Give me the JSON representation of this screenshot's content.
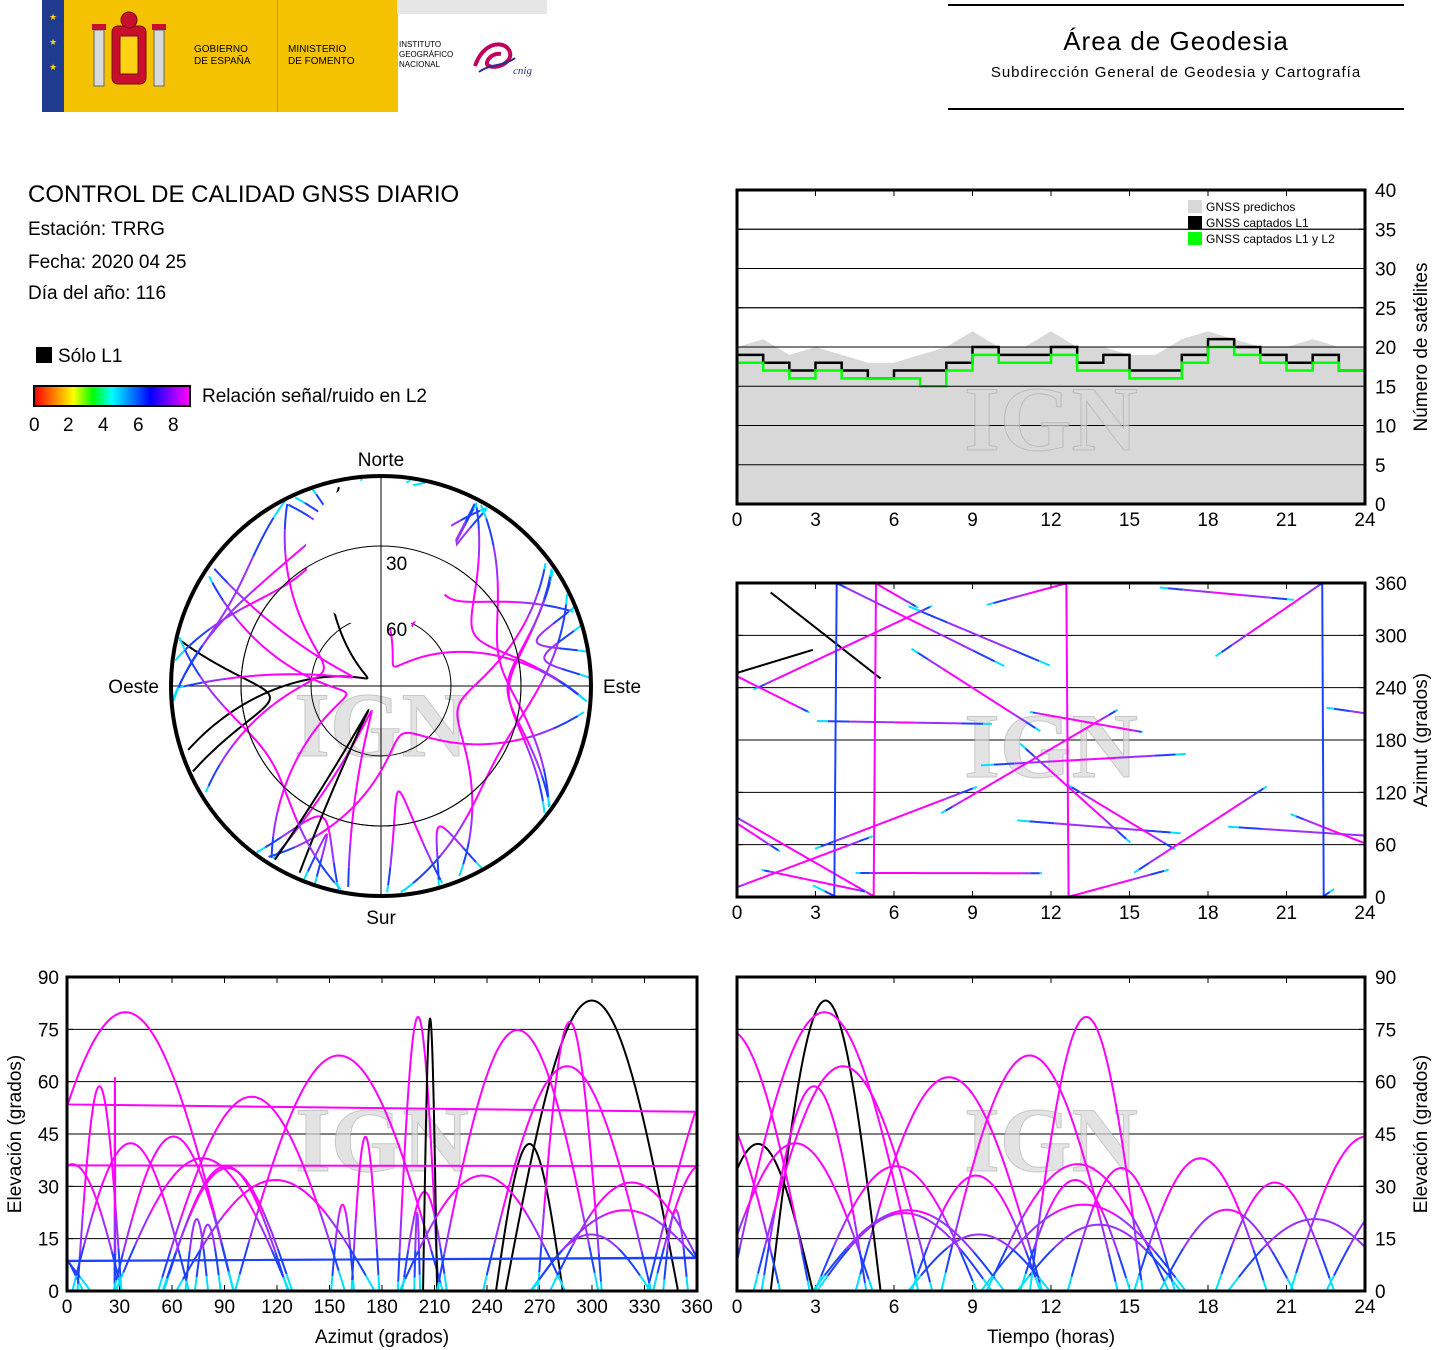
{
  "header": {
    "gov_line1": "GOBIERNO",
    "gov_line2": "DE ESPAÑA",
    "ministry_line1": "MINISTERIO",
    "ministry_line2": "DE FOMENTO",
    "institute_line1": "INSTITUTO",
    "institute_line2": "GEOGRÁFICO",
    "institute_line3": "NACIONAL",
    "cnig": "cnig",
    "area_title": "Área de Geodesia",
    "area_subtitle": "Subdirección General de Geodesia y Cartografía"
  },
  "info": {
    "title": "CONTROL DE CALIDAD GNSS DIARIO",
    "station": "Estación: TRRG",
    "date": "Fecha: 2020 04 25",
    "doy": "Día del año: 116"
  },
  "legend": {
    "l1_only": "Sólo L1",
    "snr_label": "Relación señal/ruido en L2",
    "snr_ticks": [
      "0",
      "2",
      "4",
      "6",
      "8"
    ],
    "colors": {
      "l1_only": "#000000",
      "l2_high": "#ff00ff",
      "l2_mid": "#2040ff",
      "l2_low": "#00e0ff",
      "predicted": "#d8d8d8",
      "l1l2": "#00ff00"
    }
  },
  "watermark": "IGN",
  "chart_data": [
    {
      "id": "satcount",
      "type": "area",
      "xlim": [
        0,
        24
      ],
      "ylim": [
        0,
        40
      ],
      "xticks": [
        "0",
        "3",
        "6",
        "9",
        "12",
        "15",
        "18",
        "21",
        "24"
      ],
      "yticks": [
        "0",
        "5",
        "10",
        "15",
        "20",
        "25",
        "30",
        "35",
        "40"
      ],
      "ylabel": "Número de satélites",
      "legend": [
        "GNSS predichos",
        "GNSS captados L1",
        "GNSS captados L1 y L2"
      ],
      "x": [
        0,
        1,
        2,
        3,
        4,
        5,
        6,
        7,
        8,
        9,
        10,
        11,
        12,
        13,
        14,
        15,
        16,
        17,
        18,
        19,
        20,
        21,
        22,
        23,
        24
      ],
      "series": [
        {
          "name": "GNSS predichos",
          "values": [
            20,
            21,
            19,
            20,
            19,
            18,
            18,
            19,
            20,
            22,
            20,
            20,
            22,
            20,
            20,
            19,
            19,
            21,
            22,
            21,
            20,
            20,
            21,
            20,
            20
          ]
        },
        {
          "name": "GNSS captados L1",
          "values": [
            19,
            18,
            17,
            18,
            17,
            16,
            17,
            17,
            18,
            20,
            19,
            19,
            20,
            18,
            19,
            17,
            17,
            19,
            21,
            20,
            19,
            18,
            19,
            17,
            19
          ]
        },
        {
          "name": "GNSS captados L1 y L2",
          "values": [
            18,
            17,
            16,
            17,
            16,
            16,
            16,
            15,
            17,
            19,
            18,
            18,
            19,
            17,
            17,
            16,
            16,
            18,
            20,
            19,
            18,
            17,
            18,
            17,
            18
          ]
        }
      ]
    },
    {
      "id": "azimut_tiempo",
      "type": "scatter",
      "xlim": [
        0,
        24
      ],
      "ylim": [
        0,
        360
      ],
      "xticks": [
        "0",
        "3",
        "6",
        "9",
        "12",
        "15",
        "18",
        "21",
        "24"
      ],
      "yticks": [
        "0",
        "60",
        "120",
        "180",
        "240",
        "300",
        "360"
      ],
      "ylabel": "Azimut (grados)"
    },
    {
      "id": "polar",
      "type": "scatter",
      "labels": {
        "north": "Norte",
        "south": "Sur",
        "east": "Este",
        "west": "Oeste"
      },
      "rings": [
        "30",
        "60"
      ]
    },
    {
      "id": "elev_azimut",
      "type": "scatter",
      "xlim": [
        0,
        360
      ],
      "ylim": [
        0,
        90
      ],
      "xticks": [
        "0",
        "30",
        "60",
        "90",
        "120",
        "150",
        "180",
        "210",
        "240",
        "270",
        "300",
        "330",
        "360"
      ],
      "yticks": [
        "0",
        "15",
        "30",
        "45",
        "60",
        "75",
        "90"
      ],
      "xlabel": "Azimut (grados)",
      "ylabel": "Elevación (grados)"
    },
    {
      "id": "elev_tiempo",
      "type": "scatter",
      "xlim": [
        0,
        24
      ],
      "ylim": [
        0,
        90
      ],
      "xticks": [
        "0",
        "3",
        "6",
        "9",
        "12",
        "15",
        "18",
        "21",
        "24"
      ],
      "yticks": [
        "0",
        "15",
        "30",
        "45",
        "60",
        "75",
        "90"
      ],
      "xlabel": "Tiempo (horas)",
      "ylabel": "Elevación (grados)"
    }
  ]
}
